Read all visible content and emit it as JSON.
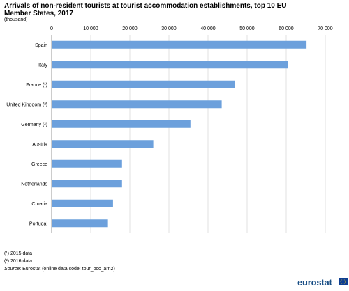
{
  "header": {
    "title": "Arrivals of non-resident tourists at tourist accommodation establishments, top 10 EU Member States, 2017",
    "subtitle": "(thousand)"
  },
  "footnotes": {
    "note1": "(¹) 2015 data",
    "note2": "(²) 2016 data",
    "source_label": "Source",
    "source_text": ": Eurostat (online data code: tour_occ_arn2)"
  },
  "logo": {
    "text": "eurostat",
    "flag": "eu-flag-icon"
  },
  "colors": {
    "bar": "#6ca0dc",
    "grid": "#d9d9d9",
    "axis": "#7f7f7f",
    "brand": "#1a4f86"
  },
  "chart_data": {
    "type": "bar",
    "orientation": "horizontal",
    "title": "Arrivals of non-resident tourists at tourist accommodation establishments, top 10 EU Member States, 2017",
    "unit": "(thousand)",
    "categories": [
      "Spain",
      "Italy",
      "France (¹)",
      "United Kingdom (²)",
      "Germany (²)",
      "Austria",
      "Greece",
      "Netherlands",
      "Croatia",
      "Portugal"
    ],
    "values": [
      65200,
      60500,
      46800,
      43500,
      35500,
      26000,
      18000,
      18000,
      15700,
      14400
    ],
    "xlim": [
      0,
      70000
    ],
    "xticks": [
      0,
      10000,
      20000,
      30000,
      40000,
      50000,
      60000,
      70000
    ],
    "xtick_labels": [
      "0",
      "10 000",
      "20 000",
      "30 000",
      "40 000",
      "50 000",
      "60 000",
      "70 000"
    ],
    "axis_position": "top",
    "grid": true,
    "legend": "none"
  }
}
